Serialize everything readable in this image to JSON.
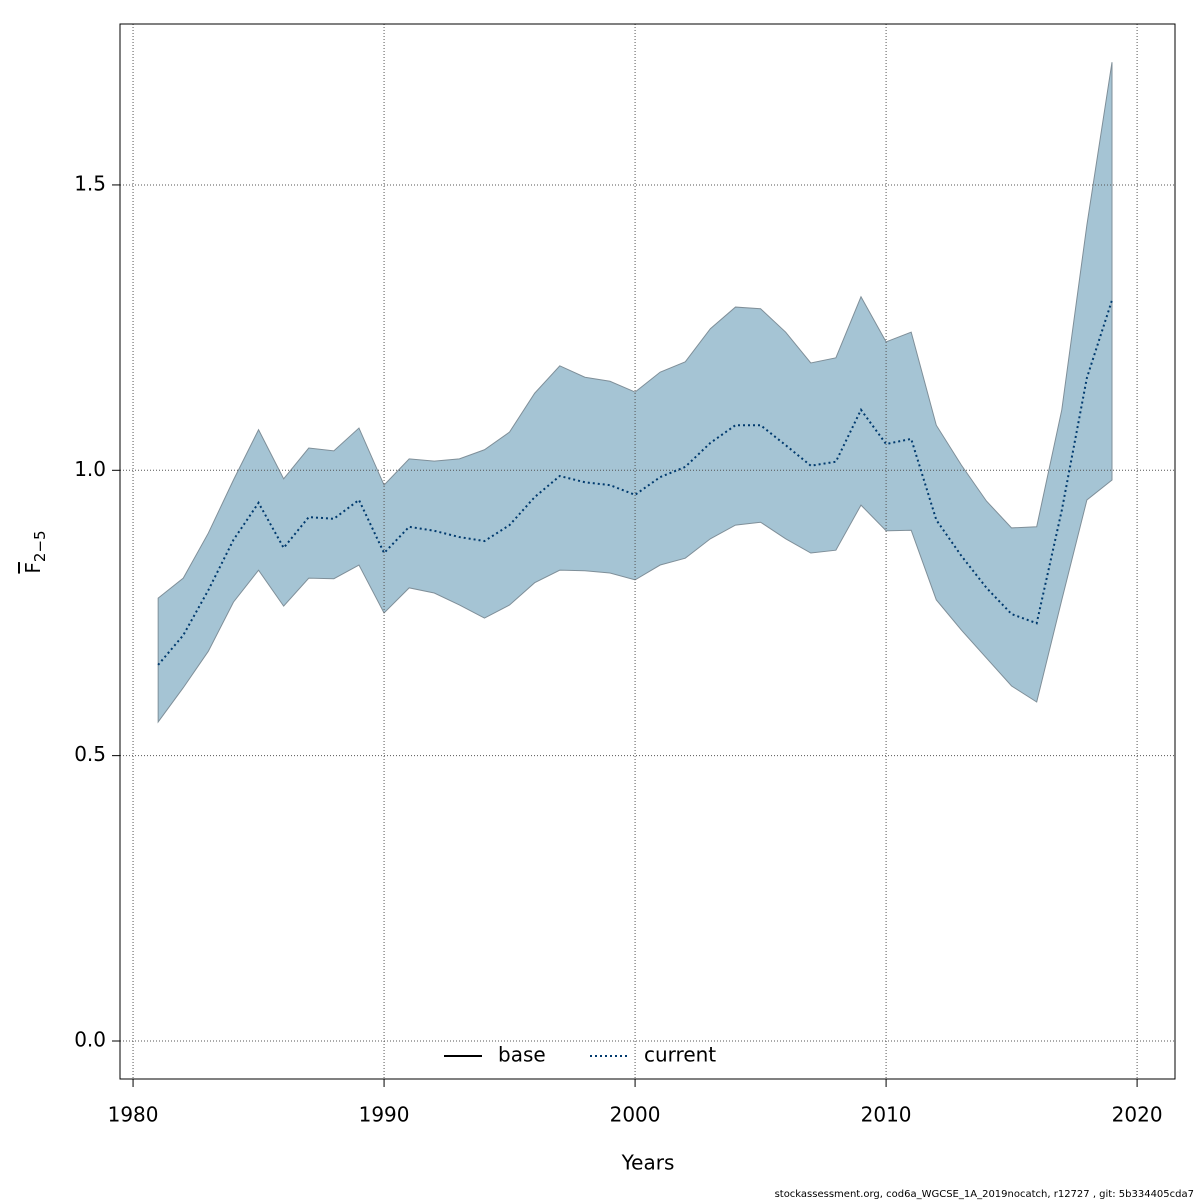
{
  "chart_data": {
    "type": "line",
    "xlabel": "Years",
    "ylabel": {
      "main": "F",
      "sub": "2−5"
    },
    "footnote": "stockassessment.org, cod6a_WGCSE_1A_2019nocatch, r12727 , git: 5b334405cda7",
    "x": [
      1981,
      1982,
      1983,
      1984,
      1985,
      1986,
      1987,
      1988,
      1989,
      1990,
      1991,
      1992,
      1993,
      1994,
      1995,
      1996,
      1997,
      1998,
      1999,
      2000,
      2001,
      2002,
      2003,
      2004,
      2005,
      2006,
      2007,
      2008,
      2009,
      2010,
      2011,
      2012,
      2013,
      2014,
      2015,
      2016,
      2017,
      2018,
      2019
    ],
    "series": [
      {
        "color": "#003a6e",
        "band_color": "#a5c4d4",
        "values": [
          0.659,
          0.711,
          0.79,
          0.878,
          0.943,
          0.864,
          0.918,
          0.915,
          0.948,
          0.855,
          0.901,
          0.894,
          0.883,
          0.876,
          0.904,
          0.953,
          0.99,
          0.979,
          0.974,
          0.957,
          0.988,
          1.006,
          1.048,
          1.079,
          1.079,
          1.044,
          1.008,
          1.015,
          1.106,
          1.046,
          1.055,
          0.913,
          0.85,
          0.794,
          0.748,
          0.732,
          0.93,
          1.162,
          1.298
        ],
        "upper": [
          0.776,
          0.811,
          0.89,
          0.983,
          1.071,
          0.985,
          1.039,
          1.034,
          1.074,
          0.974,
          1.02,
          1.016,
          1.02,
          1.036,
          1.067,
          1.135,
          1.183,
          1.163,
          1.156,
          1.137,
          1.172,
          1.19,
          1.248,
          1.286,
          1.283,
          1.242,
          1.188,
          1.197,
          1.304,
          1.225,
          1.242,
          1.079,
          1.009,
          0.946,
          0.899,
          0.901,
          1.106,
          1.43,
          1.715
        ],
        "lower": [
          0.559,
          0.619,
          0.683,
          0.769,
          0.825,
          0.762,
          0.811,
          0.81,
          0.834,
          0.75,
          0.794,
          0.785,
          0.764,
          0.741,
          0.764,
          0.803,
          0.825,
          0.824,
          0.82,
          0.808,
          0.834,
          0.846,
          0.88,
          0.904,
          0.909,
          0.88,
          0.855,
          0.86,
          0.939,
          0.894,
          0.895,
          0.773,
          0.72,
          0.671,
          0.622,
          0.594,
          0.773,
          0.948,
          0.983
        ]
      }
    ],
    "legend": [
      {
        "name": "base",
        "color": "#000000",
        "style": "solid"
      },
      {
        "name": "current",
        "color": "#003a6e",
        "style": "dotted"
      }
    ],
    "xlim": [
      1979.48,
      2021.51
    ],
    "ylim": [
      -0.0666,
      1.782
    ],
    "xticks": [
      1980,
      1990,
      2000,
      2010,
      2020
    ],
    "yticks": [
      {
        "value": 0,
        "label": "0.0"
      },
      0.5,
      {
        "value": 1,
        "label": "1.0"
      },
      1.5
    ],
    "grid": true
  }
}
